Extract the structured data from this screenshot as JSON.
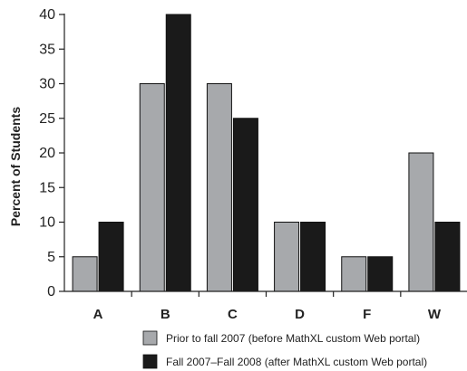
{
  "chart_data": {
    "type": "bar",
    "categories": [
      "A",
      "B",
      "C",
      "D",
      "F",
      "W"
    ],
    "series": [
      {
        "name": "Prior to fall 2007 (before MathXL custom Web portal)",
        "values": [
          5,
          30,
          30,
          10,
          5,
          20
        ],
        "color": "#a7a9ac"
      },
      {
        "name": "Fall 2007–Fall 2008 (after MathXL custom Web portal)",
        "values": [
          10,
          40,
          25,
          10,
          5,
          10
        ],
        "color": "#1a1a1a"
      }
    ],
    "title": "",
    "xlabel": "",
    "ylabel": "Percent of Students",
    "ylim": [
      0,
      40
    ],
    "yticks": [
      0,
      5,
      10,
      15,
      20,
      25,
      30,
      35,
      40
    ],
    "grid": false,
    "legend_position": "bottom"
  }
}
